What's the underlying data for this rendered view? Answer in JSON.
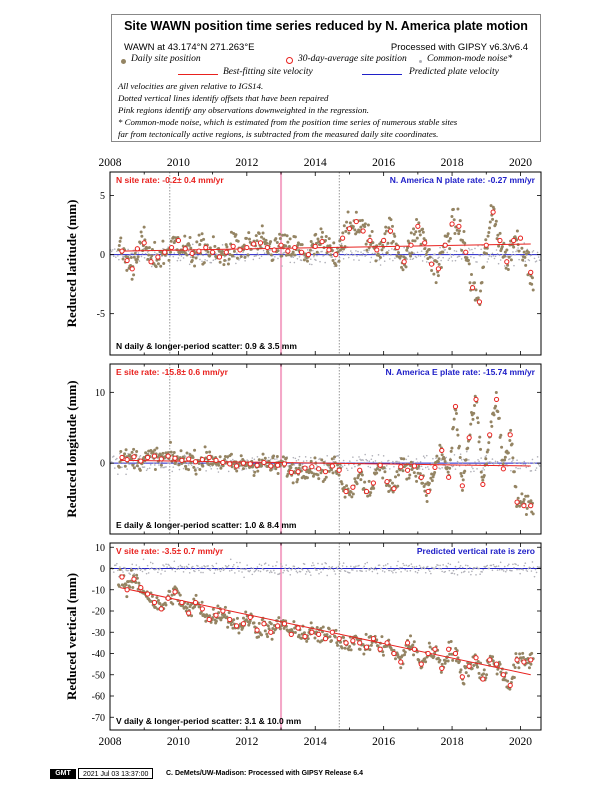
{
  "legend": {
    "title": "Site WAWN position time series reduced by N. America plate motion",
    "location": "WAWN at 43.174°N 271.263°E",
    "processed": "Processed with GIPSY v6.3/v6.4",
    "daily_label": "Daily site position",
    "avg_label": "30-day-average site position",
    "cm_label": "Common-mode noise*",
    "best_fit_label": "Best-fitting site velocity",
    "predicted_label": "Predicted plate velocity",
    "notes": [
      "All velocities are given relative to IGS14.",
      "Dotted vertical lines identify offsets that have been repaired",
      "Pink regions identify any observations downweighted in the regression.",
      "* Common-mode noise, which is estimated from the position time series of numerous stable sites",
      "far from tectonically active regions, is subtracted from the measured daily site coordinates."
    ]
  },
  "footer": {
    "logo": "GMT",
    "timestamp": "2021 Jul 03 13:37:00",
    "credit": "C. DeMets/UW-Madison: Processed with GIPSY Release 6.4"
  },
  "colors": {
    "daily": "#948463",
    "common_mode": "#b0b0b8",
    "avg": "#e8211e",
    "best_fit": "#e8211e",
    "predicted": "#2020c8",
    "pink_band": "#f4a8c8"
  },
  "chart_data": [
    {
      "type": "scatter",
      "panel": "N",
      "ylabel": "Reduced latitude (mm)",
      "xlim": [
        2008.0,
        2020.6
      ],
      "ylim": [
        -8.5,
        7.0
      ],
      "yticks": [
        -5,
        0,
        5
      ],
      "xticks": [
        2008,
        2010,
        2012,
        2014,
        2016,
        2018,
        2020
      ],
      "rate_label": "N site rate:  -0.2± 0.4 mm/yr",
      "plate_label": "N. America N plate rate:  -0.27 mm/yr",
      "scatter_label": "N daily & longer-period scatter:    0.9  &    3.5 mm",
      "best_fit_line": {
        "x": [
          2008.3,
          2020.3
        ],
        "y": [
          0.3,
          0.9
        ]
      },
      "predicted_line": {
        "x": [
          2008.0,
          2020.6
        ],
        "y": [
          0.0,
          0.0
        ]
      },
      "offsets": [
        2009.75,
        2014.7
      ],
      "pink_band": [
        2012.97,
        2013.03
      ],
      "series": [
        {
          "name": "30-day-average site position",
          "x": [
            2008.35,
            2008.5,
            2008.65,
            2008.8,
            2009.0,
            2009.2,
            2009.4,
            2009.6,
            2009.8,
            2010.0,
            2010.2,
            2010.4,
            2010.6,
            2010.8,
            2011.0,
            2011.2,
            2011.4,
            2011.6,
            2011.8,
            2012.0,
            2012.2,
            2012.4,
            2012.6,
            2012.8,
            2013.0,
            2013.2,
            2013.4,
            2013.6,
            2013.8,
            2014.0,
            2014.2,
            2014.4,
            2014.6,
            2014.8,
            2015.0,
            2015.2,
            2015.4,
            2015.6,
            2015.8,
            2016.0,
            2016.2,
            2016.4,
            2016.6,
            2016.8,
            2017.0,
            2017.2,
            2017.4,
            2017.6,
            2017.8,
            2018.0,
            2018.2,
            2018.4,
            2018.6,
            2018.8,
            2019.0,
            2019.2,
            2019.4,
            2019.6,
            2019.8,
            2020.0,
            2020.3
          ],
          "y": [
            0.3,
            -0.5,
            -1.2,
            0.5,
            1.0,
            -0.6,
            -0.2,
            0.2,
            0.6,
            1.2,
            0.5,
            0.1,
            0.3,
            0.6,
            0.2,
            -0.2,
            0.2,
            0.7,
            0.4,
            0.6,
            0.9,
            1.0,
            0.6,
            0.4,
            0.8,
            0.3,
            0.6,
            0.2,
            0.0,
            0.7,
            1.1,
            0.4,
            0.0,
            1.4,
            2.2,
            2.8,
            2.0,
            1.2,
            0.4,
            1.2,
            2.0,
            0.6,
            -0.6,
            0.8,
            2.4,
            1.0,
            -0.8,
            -1.2,
            0.8,
            2.6,
            2.4,
            0.2,
            -2.8,
            -4.0,
            0.8,
            3.6,
            1.2,
            -0.6,
            1.2,
            1.4,
            -1.5
          ]
        }
      ]
    },
    {
      "type": "scatter",
      "panel": "E",
      "ylabel": "Reduced longitude (mm)",
      "xlim": [
        2008.0,
        2020.6
      ],
      "ylim": [
        -10.0,
        14.0
      ],
      "yticks": [
        0,
        10
      ],
      "xticks": [
        2008,
        2010,
        2012,
        2014,
        2016,
        2018,
        2020
      ],
      "rate_label": "E site rate:  -15.8± 0.6 mm/yr",
      "plate_label": "N. America E plate rate:  -15.74 mm/yr",
      "scatter_label": "E daily & longer-period scatter:    1.0 &    8.4 mm",
      "best_fit_line": {
        "x": [
          2008.3,
          2020.3
        ],
        "y": [
          0.4,
          -0.4
        ]
      },
      "predicted_line": {
        "x": [
          2008.0,
          2020.6
        ],
        "y": [
          0.0,
          0.0
        ]
      },
      "offsets": [
        2009.75,
        2014.7
      ],
      "pink_band": [
        2012.97,
        2013.03
      ],
      "series": [
        {
          "name": "30-day-average site position",
          "x": [
            2008.35,
            2008.5,
            2008.7,
            2008.9,
            2009.1,
            2009.3,
            2009.5,
            2009.7,
            2009.9,
            2010.1,
            2010.3,
            2010.5,
            2010.7,
            2010.9,
            2011.1,
            2011.3,
            2011.5,
            2011.7,
            2011.9,
            2012.1,
            2012.3,
            2012.5,
            2012.7,
            2012.9,
            2013.1,
            2013.3,
            2013.5,
            2013.7,
            2013.9,
            2014.1,
            2014.3,
            2014.5,
            2014.7,
            2014.9,
            2015.1,
            2015.3,
            2015.5,
            2015.7,
            2015.9,
            2016.1,
            2016.3,
            2016.5,
            2016.7,
            2016.9,
            2017.1,
            2017.3,
            2017.5,
            2017.7,
            2017.9,
            2018.1,
            2018.3,
            2018.5,
            2018.7,
            2018.9,
            2019.1,
            2019.3,
            2019.5,
            2019.7,
            2019.9,
            2020.1,
            2020.3
          ],
          "y": [
            0.8,
            0.5,
            0.9,
            0.3,
            0.8,
            1.0,
            0.6,
            1.0,
            0.7,
            0.4,
            0.6,
            0.2,
            0.5,
            0.8,
            0.4,
            0.1,
            -0.1,
            -0.4,
            0.0,
            -0.1,
            -0.3,
            0.1,
            -0.4,
            -0.3,
            -0.1,
            -1.3,
            -1.2,
            -0.7,
            -0.5,
            -0.8,
            -1.2,
            -0.4,
            -1.0,
            -4.0,
            -3.4,
            -1.0,
            -4.0,
            -2.8,
            -0.3,
            -2.6,
            -3.6,
            -0.5,
            -1.0,
            -0.4,
            -2.0,
            -4.0,
            -0.6,
            1.8,
            -2.0,
            8.0,
            -3.2,
            3.6,
            9.0,
            -3.0,
            4.0,
            9.0,
            -0.8,
            4.0,
            -5.5,
            -6.0,
            -6.0
          ]
        }
      ]
    },
    {
      "type": "scatter",
      "panel": "V",
      "ylabel": "Reduced vertical (mm)",
      "xlim": [
        2008.0,
        2020.6
      ],
      "ylim": [
        -76.0,
        12.0
      ],
      "yticks": [
        -70,
        -60,
        -50,
        -40,
        -30,
        -20,
        -10,
        0,
        10
      ],
      "xticks": [
        2008,
        2010,
        2012,
        2014,
        2016,
        2018,
        2020
      ],
      "rate_label": "V site rate:  -3.5± 0.7 mm/yr",
      "plate_label": "Predicted vertical rate is zero",
      "scatter_label": "V daily & longer-period scatter:    3.1 &   10.0 mm",
      "best_fit_line": {
        "x": [
          2008.3,
          2020.3
        ],
        "y": [
          -9.0,
          -50.0
        ]
      },
      "predicted_line": {
        "x": [
          2008.0,
          2020.6
        ],
        "y": [
          0.0,
          0.0
        ]
      },
      "offsets": [
        2014.7
      ],
      "pink_band": [
        2012.97,
        2013.03
      ],
      "series": [
        {
          "name": "30-day-average site position",
          "x": [
            2008.35,
            2008.5,
            2008.7,
            2008.9,
            2009.1,
            2009.3,
            2009.5,
            2009.7,
            2009.9,
            2010.1,
            2010.3,
            2010.5,
            2010.7,
            2010.9,
            2011.1,
            2011.3,
            2011.5,
            2011.7,
            2011.9,
            2012.1,
            2012.3,
            2012.5,
            2012.7,
            2012.9,
            2013.1,
            2013.3,
            2013.5,
            2013.7,
            2013.9,
            2014.1,
            2014.3,
            2014.5,
            2014.7,
            2014.9,
            2015.1,
            2015.3,
            2015.5,
            2015.7,
            2015.9,
            2016.1,
            2016.3,
            2016.5,
            2016.7,
            2016.9,
            2017.1,
            2017.3,
            2017.5,
            2017.7,
            2017.9,
            2018.1,
            2018.3,
            2018.5,
            2018.7,
            2018.9,
            2019.1,
            2019.3,
            2019.5,
            2019.7,
            2019.9,
            2020.1,
            2020.3
          ],
          "y": [
            -4,
            -10,
            -5,
            -9,
            -12,
            -16,
            -19,
            -14,
            -11,
            -16,
            -21,
            -16,
            -19,
            -24,
            -22,
            -20,
            -24,
            -27,
            -26,
            -23,
            -29,
            -26,
            -30,
            -27,
            -26,
            -31,
            -28,
            -32,
            -30,
            -31,
            -33,
            -30,
            -33,
            -35,
            -34,
            -35,
            -37,
            -33,
            -38,
            -35,
            -40,
            -44,
            -35,
            -38,
            -45,
            -40,
            -38,
            -47,
            -38,
            -40,
            -51,
            -46,
            -42,
            -52,
            -43,
            -45,
            -50,
            -55,
            -43,
            -44,
            -43
          ]
        }
      ]
    }
  ]
}
